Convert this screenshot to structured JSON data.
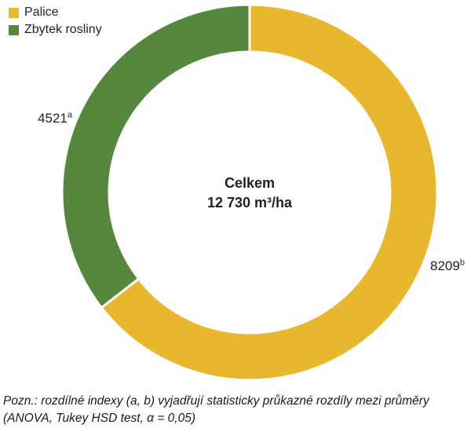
{
  "legend": {
    "items": [
      {
        "label": "Palice",
        "color": "#E8B72E"
      },
      {
        "label": "Zbytek rosliny",
        "color": "#55883D"
      }
    ]
  },
  "chart_data": {
    "type": "pie",
    "subtype": "donut",
    "categories": [
      "Palice",
      "Zbytek rosliny"
    ],
    "values": [
      8209,
      4521
    ],
    "total": 12730,
    "unit": "m³/ha",
    "colors": [
      "#E8B72E",
      "#55883D"
    ],
    "start_angle_deg": 0,
    "direction": "clockwise",
    "inner_radius_ratio": 0.75,
    "legend_position": "top-left",
    "center_label": {
      "title": "Celkem",
      "value": "12 730 m³/ha"
    },
    "slice_labels": [
      {
        "category": "Palice",
        "value": "8209",
        "index": "b"
      },
      {
        "category": "Zbytek rosliny",
        "value": "4521",
        "index": "a"
      }
    ]
  },
  "center_label": {
    "title": "Celkem",
    "value": "12 730 m³/ha"
  },
  "slice_labels": {
    "zbytek": {
      "value": "4521",
      "index": "a"
    },
    "palice": {
      "value": "8209",
      "index": "b"
    }
  },
  "footnote": {
    "line1": "Pozn.: rozdílné indexy (a, b) vyjadřují statisticky průkazné rozdíly mezi průměry",
    "line2": "(ANOVA, Tukey HSD test, α = 0,05)"
  }
}
